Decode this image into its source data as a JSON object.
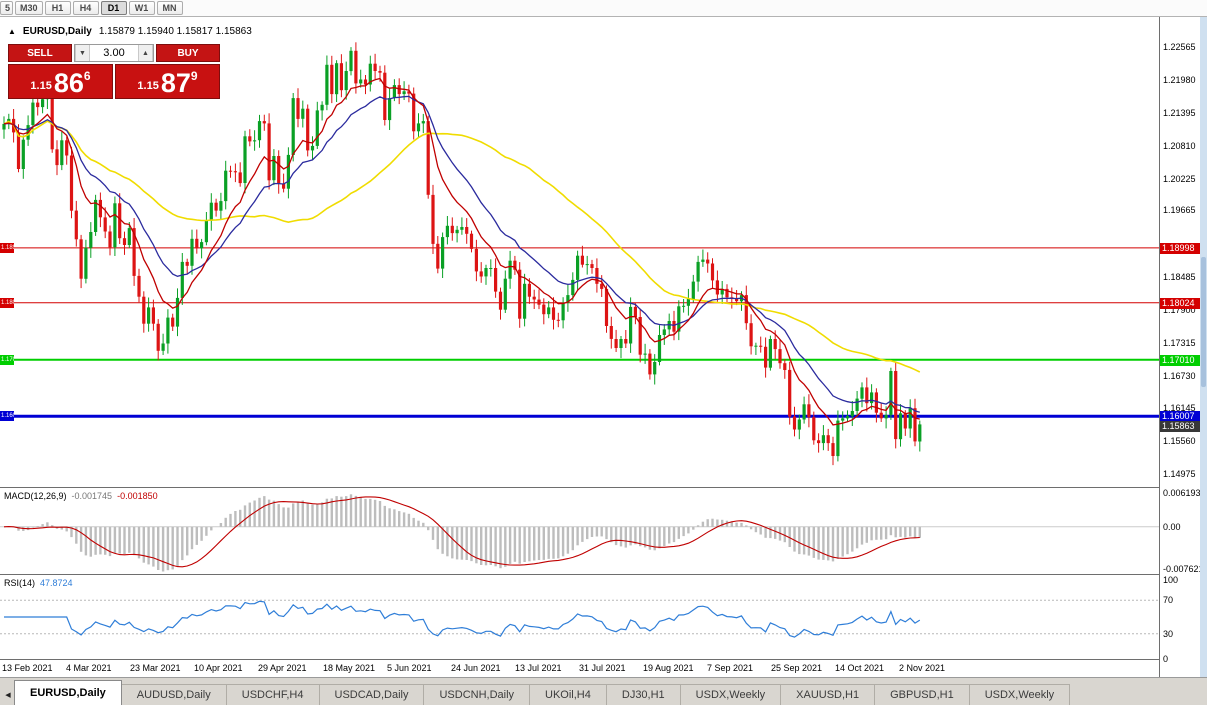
{
  "toolbar": {
    "timeframes": [
      {
        "label": "5",
        "active": false,
        "partial": true
      },
      {
        "label": "M30",
        "active": false,
        "partial": false
      },
      {
        "label": "H1",
        "active": false,
        "partial": false
      },
      {
        "label": "H4",
        "active": false,
        "partial": false
      },
      {
        "label": "D1",
        "active": true,
        "partial": false
      },
      {
        "label": "W1",
        "active": false,
        "partial": false
      },
      {
        "label": "MN",
        "active": false,
        "partial": false
      }
    ]
  },
  "chart_header": {
    "collapse_icon": "▲",
    "symbol": "EURUSD,Daily",
    "ohlc": "1.15879 1.15940 1.15817 1.15863"
  },
  "trade_panel": {
    "sell_label": "SELL",
    "buy_label": "BUY",
    "volume": "3.00",
    "volume_down_icon": "▼",
    "volume_up_icon": "▲",
    "bid": {
      "prefix": "1.15",
      "big": "86",
      "sup": "6"
    },
    "ask": {
      "prefix": "1.15",
      "big": "87",
      "sup": "9"
    }
  },
  "price_axis_labels": [
    "1.22565",
    "1.21980",
    "1.21395",
    "1.20810",
    "1.20225",
    "1.19665",
    "1.18485",
    "1.17900",
    "1.17315",
    "1.16730",
    "1.16145",
    "1.15560",
    "1.14975"
  ],
  "levels": [
    {
      "price": 1.18998,
      "label": "1.18998",
      "color": "#d40000",
      "thickness": 1
    },
    {
      "price": 1.18024,
      "label": "1.18024",
      "color": "#d40000",
      "thickness": 1
    },
    {
      "price": 1.1701,
      "label": "1.17010",
      "color": "#00ce00",
      "thickness": 2
    },
    {
      "price": 1.16007,
      "label": "1.16007",
      "color": "#0000d4",
      "thickness": 3
    }
  ],
  "current_price_tag": {
    "label": "1.15863",
    "value": 1.15863,
    "bg": "#383838"
  },
  "macd_panel": {
    "title": "MACD(12,26,9)",
    "main_value": "-0.001745",
    "signal_value": "-0.001850",
    "axis_labels": [
      {
        "text": "0.006193",
        "value": 0.006193
      },
      {
        "text": "0.00",
        "value": 0
      },
      {
        "text": "-0.007621",
        "value": -0.007621
      }
    ]
  },
  "rsi_panel": {
    "title": "RSI(14)",
    "value": "47.8724",
    "axis_labels": [
      {
        "text": "100",
        "value": 100
      },
      {
        "text": "70",
        "value": 70
      },
      {
        "text": "30",
        "value": 30
      },
      {
        "text": "0",
        "value": 0
      }
    ],
    "level_lines": [
      70,
      30
    ]
  },
  "tabs": {
    "scroll_left_icon": "◀",
    "items": [
      {
        "label": "EURUSD,Daily",
        "active": true
      },
      {
        "label": "AUDUSD,Daily",
        "active": false
      },
      {
        "label": "USDCHF,H4",
        "active": false
      },
      {
        "label": "USDCAD,Daily",
        "active": false
      },
      {
        "label": "USDCNH,Daily",
        "active": false
      },
      {
        "label": "UKOil,H4",
        "active": false
      },
      {
        "label": "DJ30,H1",
        "active": false
      },
      {
        "label": "USDX,Weekly",
        "active": false
      },
      {
        "label": "XAUUSD,H1",
        "active": false
      },
      {
        "label": "GBPUSD,H1",
        "active": false
      },
      {
        "label": "USDX,Weekly",
        "active": false
      }
    ]
  },
  "chart_data": {
    "type": "candlestick",
    "symbol": "EURUSD",
    "timeframe": "Daily",
    "title": "EURUSD,Daily",
    "price_range": [
      1.1475,
      1.231
    ],
    "macd_range": [
      -0.0085,
      0.007
    ],
    "rsi_range": [
      0,
      100
    ],
    "x_labels": [
      "13 Feb 2021",
      "4 Mar 2021",
      "23 Mar 2021",
      "10 Apr 2021",
      "29 Apr 2021",
      "18 May 2021",
      "5 Jun 2021",
      "24 Jun 2021",
      "13 Jul 2021",
      "31 Jul 2021",
      "19 Aug 2021",
      "7 Sep 2021",
      "25 Sep 2021",
      "14 Oct 2021",
      "2 Nov 2021"
    ],
    "moving_averages": [
      {
        "type": "SMA",
        "period": 50,
        "color": "#f0dc00",
        "width": 1.6
      },
      {
        "type": "EMA",
        "period": 20,
        "color": "#2b2b9e",
        "width": 1.3
      },
      {
        "type": "EMA",
        "period": 10,
        "color": "#c00000",
        "width": 1.3
      }
    ],
    "indicators": {
      "macd": {
        "fast": 12,
        "slow": 26,
        "signal": 9
      },
      "rsi": {
        "period": 14
      }
    },
    "colors": {
      "up": "#0aa025",
      "down": "#dd1414",
      "macd_hist": "#bdbdbd",
      "macd_signal": "#c00000",
      "rsi": "#2f7ed8",
      "levels_dotted": "#b8b8b8"
    },
    "closes": [
      1.212,
      1.2129,
      1.2105,
      1.204,
      1.2092,
      1.2118,
      1.2158,
      1.215,
      1.2164,
      1.2172,
      1.2075,
      1.2047,
      1.2091,
      1.2064,
      1.1966,
      1.1915,
      1.1845,
      1.19,
      1.1928,
      1.1985,
      1.1954,
      1.1929,
      1.1901,
      1.1979,
      1.1917,
      1.1905,
      1.1935,
      1.185,
      1.1813,
      1.1765,
      1.1794,
      1.1765,
      1.1717,
      1.173,
      1.1776,
      1.176,
      1.1811,
      1.1875,
      1.1868,
      1.1916,
      1.1899,
      1.191,
      1.1948,
      1.198,
      1.1966,
      1.1983,
      1.2037,
      1.2036,
      1.2034,
      1.2015,
      1.2098,
      1.2089,
      1.2091,
      1.2125,
      1.2121,
      1.202,
      1.2063,
      1.2014,
      1.2005,
      1.2065,
      1.2166,
      1.2129,
      1.2147,
      1.2073,
      1.2081,
      1.2144,
      1.2154,
      1.2225,
      1.2173,
      1.2228,
      1.218,
      1.2214,
      1.225,
      1.2192,
      1.2199,
      1.219,
      1.2227,
      1.2214,
      1.2211,
      1.2127,
      1.2166,
      1.2189,
      1.2173,
      1.2178,
      1.2174,
      1.2107,
      1.2121,
      1.2125,
      1.1994,
      1.1907,
      1.1863,
      1.1919,
      1.1939,
      1.1926,
      1.1932,
      1.1937,
      1.1925,
      1.1898,
      1.1858,
      1.1849,
      1.1864,
      1.1864,
      1.1822,
      1.179,
      1.1845,
      1.1877,
      1.1861,
      1.1774,
      1.1836,
      1.1813,
      1.1808,
      1.1799,
      1.1782,
      1.1794,
      1.1772,
      1.1771,
      1.1802,
      1.1816,
      1.1843,
      1.1886,
      1.187,
      1.1871,
      1.1864,
      1.1836,
      1.1827,
      1.1761,
      1.1738,
      1.1722,
      1.1738,
      1.173,
      1.1795,
      1.1777,
      1.171,
      1.1712,
      1.1675,
      1.1697,
      1.1745,
      1.1755,
      1.177,
      1.1751,
      1.1796,
      1.1797,
      1.1809,
      1.184,
      1.1875,
      1.1879,
      1.1872,
      1.1842,
      1.1817,
      1.1827,
      1.1812,
      1.181,
      1.1805,
      1.1816,
      1.1766,
      1.1725,
      1.1726,
      1.1724,
      1.1687,
      1.1738,
      1.172,
      1.1695,
      1.1683,
      1.16,
      1.1577,
      1.1595,
      1.1622,
      1.1599,
      1.1558,
      1.1553,
      1.1567,
      1.1553,
      1.153,
      1.1593,
      1.1597,
      1.1601,
      1.161,
      1.1632,
      1.1652,
      1.1624,
      1.1643,
      1.1607,
      1.1597,
      1.1603,
      1.1681,
      1.156,
      1.1606,
      1.1579,
      1.1615,
      1.1556,
      1.15863
    ]
  }
}
